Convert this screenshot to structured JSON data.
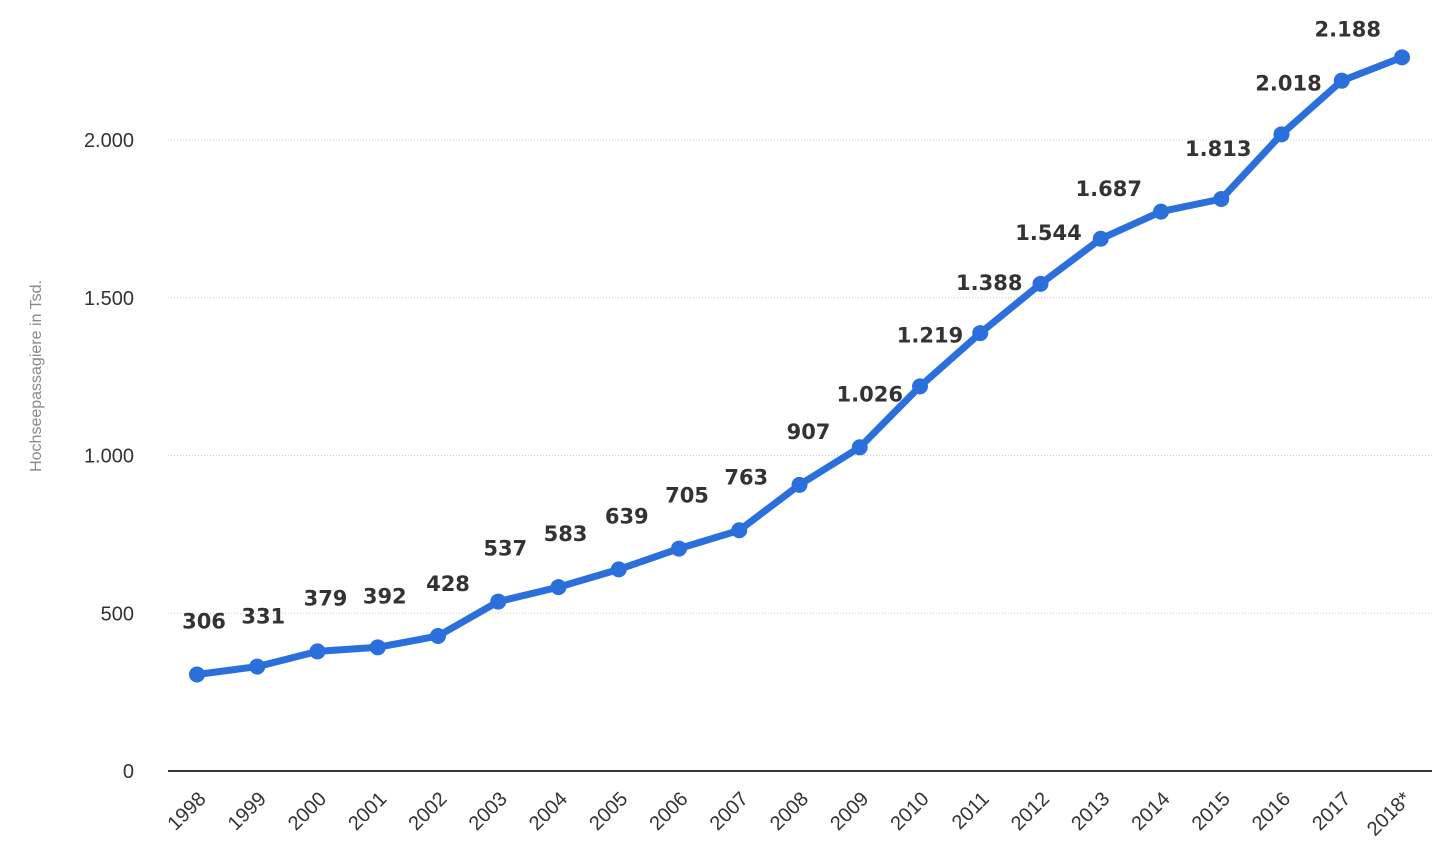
{
  "chart_data": {
    "type": "line",
    "title": "",
    "xlabel": "",
    "ylabel": "Hochseepassagiere in Tsd.",
    "categories": [
      "1998",
      "1999",
      "2000",
      "2001",
      "2002",
      "2003",
      "2004",
      "2005",
      "2006",
      "2007",
      "2008",
      "2009",
      "2010",
      "2011",
      "2012",
      "2013",
      "2014",
      "2015",
      "2016",
      "2017",
      "2018*"
    ],
    "series": [
      {
        "name": "Hochseepassagiere",
        "values": [
          306,
          331,
          379,
          392,
          428,
          537,
          583,
          639,
          705,
          763,
          907,
          1026,
          1219,
          1388,
          1544,
          1687,
          1773,
          1813,
          2018,
          2188,
          2262
        ],
        "labels": [
          "306",
          "331",
          "379",
          "392",
          "428",
          "537",
          "583",
          "639",
          "705",
          "763",
          "907",
          "1.026",
          "1.219",
          "1.388",
          "1.544",
          "1.687",
          "",
          "1.813",
          "2.018",
          "2.188",
          ""
        ]
      }
    ],
    "ylim": [
      0,
      2262
    ],
    "yticks": [
      0,
      500,
      1000,
      1500,
      2000
    ],
    "ytick_labels": [
      "0",
      "500",
      "1.000",
      "1.500",
      "2.000"
    ],
    "grid": true,
    "colors": {
      "line": "#2a6fdb",
      "grid": "#c8c8c8",
      "axis": "#333333",
      "text": "#333333",
      "ylabel": "#8a8a8a"
    }
  }
}
